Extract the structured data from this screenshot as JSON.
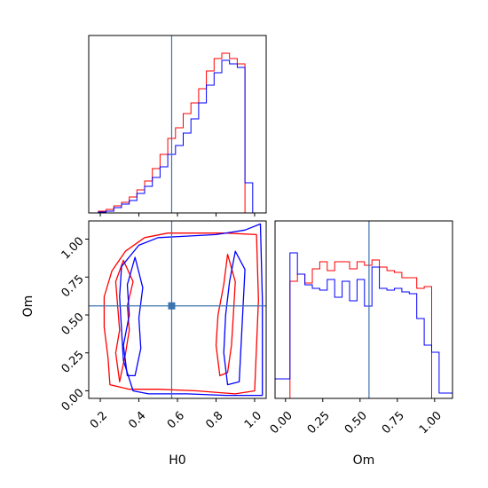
{
  "chart_data": {
    "type": "corner",
    "parameters": [
      "H0",
      "Om"
    ],
    "truth": {
      "H0": 0.57,
      "Om": 0.56
    },
    "colors": {
      "red": "#ff0000",
      "blue": "#0000ff",
      "truth": "#3b75af"
    },
    "panels": [
      {
        "name": "H0-marginal",
        "type": "histogram",
        "xlim": [
          0.14,
          1.06
        ],
        "ylim": [
          0,
          1
        ],
        "xticks": [
          0.2,
          0.4,
          0.6,
          0.8,
          1.0
        ],
        "bin_edges": [
          0.19,
          0.23,
          0.27,
          0.31,
          0.35,
          0.39,
          0.43,
          0.47,
          0.51,
          0.55,
          0.59,
          0.63,
          0.67,
          0.71,
          0.75,
          0.79,
          0.83,
          0.87,
          0.91,
          0.95,
          0.99,
          1.03
        ],
        "series": [
          {
            "name": "red",
            "color": "#ff0000",
            "values": [
              0.01,
              0.02,
              0.04,
              0.06,
              0.09,
              0.13,
              0.18,
              0.25,
              0.33,
              0.42,
              0.48,
              0.56,
              0.62,
              0.7,
              0.8,
              0.87,
              0.9,
              0.87,
              0.84,
              0.0,
              0.0
            ]
          },
          {
            "name": "blue",
            "color": "#0000ff",
            "values": [
              0.005,
              0.01,
              0.03,
              0.05,
              0.07,
              0.11,
              0.15,
              0.2,
              0.26,
              0.33,
              0.38,
              0.45,
              0.53,
              0.62,
              0.72,
              0.79,
              0.86,
              0.84,
              0.82,
              0.17,
              0.0
            ]
          }
        ]
      },
      {
        "name": "H0-Om-contours",
        "type": "contour",
        "xlim": [
          0.14,
          1.06
        ],
        "ylim": [
          -0.05,
          1.12
        ],
        "xticks": [
          0.2,
          0.4,
          0.6,
          0.8,
          1.0
        ],
        "yticks": [
          0.0,
          0.25,
          0.5,
          0.75,
          1.0
        ],
        "xticklabels": [
          "0.2",
          "0.4",
          "0.6",
          "0.8",
          "1.0"
        ],
        "yticklabels": [
          "0.00",
          "0.25",
          "0.50",
          "0.75",
          "1.00"
        ],
        "xlabel": "H0",
        "ylabel": "Om",
        "series": [
          {
            "name": "red-outer",
            "color": "#ff0000",
            "points": [
              [
                0.25,
                0.04
              ],
              [
                0.24,
                0.22
              ],
              [
                0.22,
                0.42
              ],
              [
                0.22,
                0.62
              ],
              [
                0.26,
                0.79
              ],
              [
                0.33,
                0.92
              ],
              [
                0.43,
                1.01
              ],
              [
                0.55,
                1.04
              ],
              [
                0.7,
                1.04
              ],
              [
                0.85,
                1.04
              ],
              [
                1.01,
                1.03
              ],
              [
                1.02,
                0.6
              ],
              [
                1.0,
                0.0
              ],
              [
                0.9,
                -0.02
              ],
              [
                0.7,
                0.0
              ],
              [
                0.5,
                0.01
              ],
              [
                0.35,
                0.01
              ],
              [
                0.25,
                0.04
              ]
            ]
          },
          {
            "name": "red-inner-left",
            "color": "#ff0000",
            "points": [
              [
                0.3,
                0.06
              ],
              [
                0.28,
                0.25
              ],
              [
                0.3,
                0.4
              ],
              [
                0.29,
                0.56
              ],
              [
                0.28,
                0.72
              ],
              [
                0.32,
                0.86
              ],
              [
                0.37,
                0.72
              ],
              [
                0.34,
                0.56
              ],
              [
                0.35,
                0.4
              ],
              [
                0.33,
                0.24
              ],
              [
                0.3,
                0.06
              ]
            ]
          },
          {
            "name": "red-inner-right",
            "color": "#ff0000",
            "points": [
              [
                0.82,
                0.1
              ],
              [
                0.8,
                0.3
              ],
              [
                0.81,
                0.5
              ],
              [
                0.84,
                0.7
              ],
              [
                0.86,
                0.9
              ],
              [
                0.9,
                0.72
              ],
              [
                0.89,
                0.5
              ],
              [
                0.88,
                0.3
              ],
              [
                0.86,
                0.12
              ],
              [
                0.82,
                0.1
              ]
            ]
          },
          {
            "name": "blue-outer",
            "color": "#0000ff",
            "points": [
              [
                0.37,
                0.0
              ],
              [
                0.32,
                0.2
              ],
              [
                0.31,
                0.4
              ],
              [
                0.3,
                0.62
              ],
              [
                0.31,
                0.82
              ],
              [
                0.4,
                0.96
              ],
              [
                0.5,
                1.01
              ],
              [
                0.65,
                1.02
              ],
              [
                0.8,
                1.03
              ],
              [
                0.95,
                1.06
              ],
              [
                1.03,
                1.1
              ],
              [
                1.04,
                0.6
              ],
              [
                1.04,
                -0.03
              ],
              [
                0.85,
                -0.03
              ],
              [
                0.65,
                -0.02
              ],
              [
                0.45,
                -0.02
              ],
              [
                0.37,
                0.0
              ]
            ]
          },
          {
            "name": "blue-inner-right",
            "color": "#0000ff",
            "points": [
              [
                0.86,
                0.04
              ],
              [
                0.84,
                0.25
              ],
              [
                0.85,
                0.5
              ],
              [
                0.87,
                0.72
              ],
              [
                0.9,
                0.92
              ],
              [
                0.95,
                0.8
              ],
              [
                0.94,
                0.55
              ],
              [
                0.93,
                0.3
              ],
              [
                0.92,
                0.06
              ],
              [
                0.86,
                0.04
              ]
            ]
          },
          {
            "name": "blue-inner-left",
            "color": "#0000ff",
            "points": [
              [
                0.34,
                0.1
              ],
              [
                0.32,
                0.3
              ],
              [
                0.35,
                0.5
              ],
              [
                0.34,
                0.7
              ],
              [
                0.38,
                0.88
              ],
              [
                0.42,
                0.68
              ],
              [
                0.4,
                0.48
              ],
              [
                0.41,
                0.28
              ],
              [
                0.38,
                0.1
              ],
              [
                0.34,
                0.1
              ]
            ]
          }
        ]
      },
      {
        "name": "Om-marginal",
        "type": "histogram",
        "xlim": [
          -0.07,
          1.12
        ],
        "ylim": [
          0,
          1
        ],
        "xticks": [
          0.0,
          0.25,
          0.5,
          0.75,
          1.0
        ],
        "xticklabels": [
          "0.00",
          "0.25",
          "0.50",
          "0.75",
          "1.00"
        ],
        "xlabel": "Om",
        "bin_edges": [
          -0.07,
          -0.02,
          0.03,
          0.08,
          0.13,
          0.18,
          0.23,
          0.28,
          0.33,
          0.38,
          0.43,
          0.48,
          0.53,
          0.58,
          0.63,
          0.68,
          0.73,
          0.78,
          0.83,
          0.88,
          0.93,
          0.98,
          1.03,
          1.08,
          1.12
        ],
        "series": [
          {
            "name": "red",
            "color": "#ff0000",
            "values": [
              0.0,
              0.0,
              0.66,
              0.7,
              0.65,
              0.73,
              0.77,
              0.72,
              0.77,
              0.77,
              0.73,
              0.77,
              0.75,
              0.78,
              0.74,
              0.72,
              0.71,
              0.68,
              0.68,
              0.62,
              0.63,
              0.0,
              0.0,
              0.0
            ]
          },
          {
            "name": "blue",
            "color": "#0000ff",
            "values": [
              0.11,
              0.11,
              0.82,
              0.7,
              0.64,
              0.62,
              0.61,
              0.67,
              0.57,
              0.66,
              0.55,
              0.67,
              0.52,
              0.74,
              0.62,
              0.61,
              0.62,
              0.6,
              0.59,
              0.45,
              0.3,
              0.26,
              0.03,
              0.03
            ]
          }
        ]
      }
    ]
  }
}
